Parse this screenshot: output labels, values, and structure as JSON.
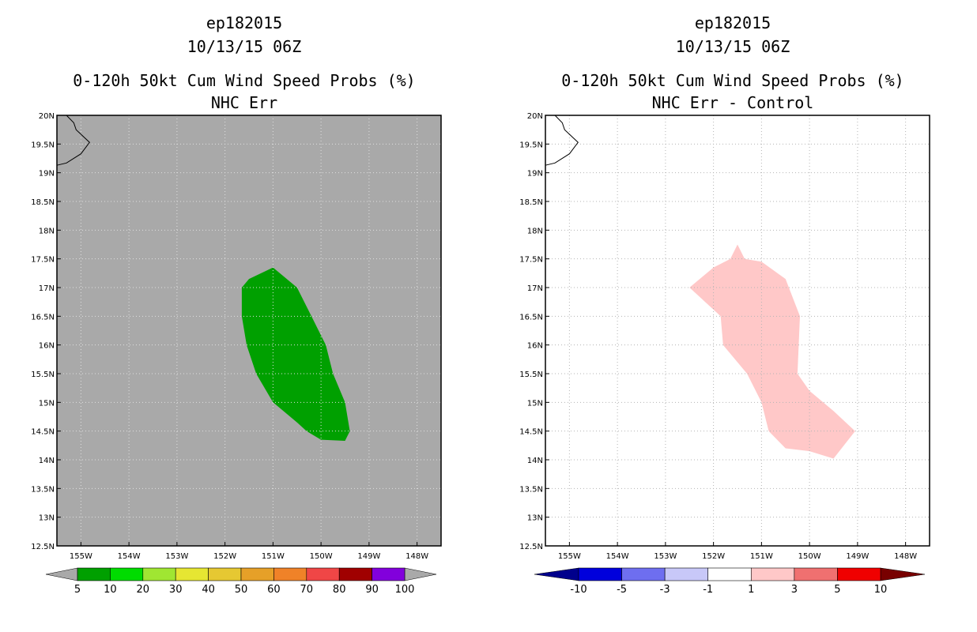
{
  "chart_data": [
    {
      "type": "heatmap",
      "title_lines": [
        "ep182015",
        "10/13/15 06Z",
        "0-120h 50kt Cum Wind Speed Probs (%)",
        "NHC Err"
      ],
      "xlabel": "",
      "ylabel": "",
      "xlim": [
        -155.5,
        -147.5
      ],
      "ylim": [
        12.5,
        20.0
      ],
      "grid": true,
      "background": "#a9a9a9",
      "x_ticks": [
        {
          "v": -155,
          "label": "155W"
        },
        {
          "v": -154,
          "label": "154W"
        },
        {
          "v": -153,
          "label": "153W"
        },
        {
          "v": -152,
          "label": "152W"
        },
        {
          "v": -151,
          "label": "151W"
        },
        {
          "v": -150,
          "label": "150W"
        },
        {
          "v": -149,
          "label": "149W"
        },
        {
          "v": -148,
          "label": "148W"
        }
      ],
      "y_ticks": [
        {
          "v": 12.5,
          "label": "12.5N"
        },
        {
          "v": 13,
          "label": "13N"
        },
        {
          "v": 13.5,
          "label": "13.5N"
        },
        {
          "v": 14,
          "label": "14N"
        },
        {
          "v": 14.5,
          "label": "14.5N"
        },
        {
          "v": 15,
          "label": "15N"
        },
        {
          "v": 15.5,
          "label": "15.5N"
        },
        {
          "v": 16,
          "label": "16N"
        },
        {
          "v": 16.5,
          "label": "16.5N"
        },
        {
          "v": 17,
          "label": "17N"
        },
        {
          "v": 17.5,
          "label": "17.5N"
        },
        {
          "v": 18,
          "label": "18N"
        },
        {
          "v": 18.5,
          "label": "18.5N"
        },
        {
          "v": 19,
          "label": "19N"
        },
        {
          "v": 19.5,
          "label": "19.5N"
        },
        {
          "v": 20,
          "label": "20N"
        }
      ],
      "coastline": [
        [
          -155.3,
          20.0
        ],
        [
          -155.15,
          19.87
        ],
        [
          -155.1,
          19.75
        ],
        [
          -154.82,
          19.53
        ],
        [
          -155.0,
          19.33
        ],
        [
          -155.3,
          19.17
        ],
        [
          -155.5,
          19.13
        ]
      ],
      "regions": [
        {
          "name": "5-10%",
          "color": "#00a000",
          "polygon": [
            [
              -151.65,
              17.0
            ],
            [
              -151.5,
              17.15
            ],
            [
              -151.0,
              17.35
            ],
            [
              -150.5,
              17.0
            ],
            [
              -150.2,
              16.5
            ],
            [
              -149.9,
              16.0
            ],
            [
              -149.75,
              15.5
            ],
            [
              -149.5,
              15.0
            ],
            [
              -149.4,
              14.5
            ],
            [
              -149.5,
              14.33
            ],
            [
              -150.0,
              14.35
            ],
            [
              -150.3,
              14.5
            ],
            [
              -150.5,
              14.65
            ],
            [
              -151.0,
              15.0
            ],
            [
              -151.35,
              15.5
            ],
            [
              -151.55,
              16.0
            ],
            [
              -151.65,
              16.5
            ]
          ]
        }
      ],
      "colorbar": {
        "arrows": {
          "low": "#a9a9a9",
          "high": "#a9a9a9"
        },
        "colors": [
          "#00a000",
          "#00dc00",
          "#a0e632",
          "#e6e632",
          "#e6c832",
          "#e6a028",
          "#f08228",
          "#f04646",
          "#a00000",
          "#8200dc"
        ],
        "labels": [
          "5",
          "10",
          "20",
          "30",
          "40",
          "50",
          "60",
          "70",
          "80",
          "90",
          "100"
        ]
      }
    },
    {
      "type": "heatmap",
      "title_lines": [
        "ep182015",
        "10/13/15 06Z",
        "0-120h 50kt Cum Wind Speed Probs (%)",
        "NHC Err - Control"
      ],
      "xlabel": "",
      "ylabel": "",
      "xlim": [
        -155.5,
        -147.5
      ],
      "ylim": [
        12.5,
        20.0
      ],
      "grid": true,
      "background": "#ffffff",
      "x_ticks": [
        {
          "v": -155,
          "label": "155W"
        },
        {
          "v": -154,
          "label": "154W"
        },
        {
          "v": -153,
          "label": "153W"
        },
        {
          "v": -152,
          "label": "152W"
        },
        {
          "v": -151,
          "label": "151W"
        },
        {
          "v": -150,
          "label": "150W"
        },
        {
          "v": -149,
          "label": "149W"
        },
        {
          "v": -148,
          "label": "148W"
        }
      ],
      "y_ticks": [
        {
          "v": 12.5,
          "label": "12.5N"
        },
        {
          "v": 13,
          "label": "13N"
        },
        {
          "v": 13.5,
          "label": "13.5N"
        },
        {
          "v": 14,
          "label": "14N"
        },
        {
          "v": 14.5,
          "label": "14.5N"
        },
        {
          "v": 15,
          "label": "15N"
        },
        {
          "v": 15.5,
          "label": "15.5N"
        },
        {
          "v": 16,
          "label": "16N"
        },
        {
          "v": 16.5,
          "label": "16.5N"
        },
        {
          "v": 17,
          "label": "17N"
        },
        {
          "v": 17.5,
          "label": "17.5N"
        },
        {
          "v": 18,
          "label": "18N"
        },
        {
          "v": 18.5,
          "label": "18.5N"
        },
        {
          "v": 19,
          "label": "19N"
        },
        {
          "v": 19.5,
          "label": "19.5N"
        },
        {
          "v": 20,
          "label": "20N"
        }
      ],
      "coastline": [
        [
          -155.3,
          20.0
        ],
        [
          -155.15,
          19.87
        ],
        [
          -155.1,
          19.75
        ],
        [
          -154.82,
          19.53
        ],
        [
          -155.0,
          19.33
        ],
        [
          -155.3,
          19.17
        ],
        [
          -155.5,
          19.13
        ]
      ],
      "regions": [
        {
          "name": "1-3",
          "color": "#ffc8c8",
          "polygon": [
            [
              -152.5,
              17.0
            ],
            [
              -152.0,
              17.35
            ],
            [
              -151.65,
              17.5
            ],
            [
              -151.5,
              17.75
            ],
            [
              -151.35,
              17.5
            ],
            [
              -151.0,
              17.45
            ],
            [
              -150.5,
              17.15
            ],
            [
              -150.2,
              16.5
            ],
            [
              -150.25,
              15.5
            ],
            [
              -150.0,
              15.2
            ],
            [
              -149.5,
              14.85
            ],
            [
              -149.05,
              14.5
            ],
            [
              -149.5,
              14.02
            ],
            [
              -150.0,
              14.15
            ],
            [
              -150.5,
              14.2
            ],
            [
              -150.85,
              14.5
            ],
            [
              -151.0,
              15.0
            ],
            [
              -151.3,
              15.5
            ],
            [
              -151.8,
              16.0
            ],
            [
              -151.85,
              16.5
            ]
          ]
        }
      ],
      "colorbar": {
        "arrows": {
          "low": "#00008c",
          "high": "#780000"
        },
        "colors": [
          "#0000dc",
          "#6e6ef0",
          "#c8c8f8",
          "#ffffff",
          "#ffc8c8",
          "#f07070",
          "#f00000"
        ],
        "labels": [
          "-10",
          "-5",
          "-3",
          "-1",
          "1",
          "3",
          "5",
          "10"
        ]
      }
    }
  ]
}
